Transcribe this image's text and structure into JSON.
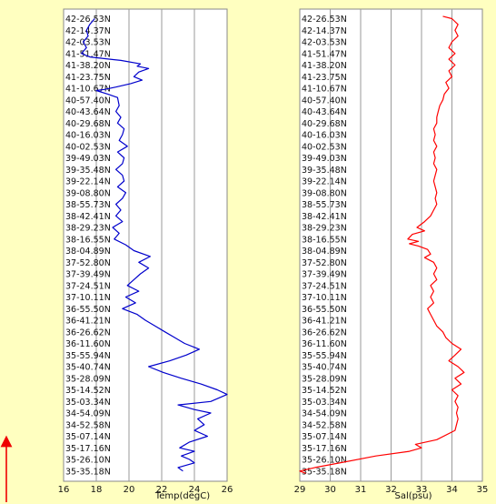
{
  "chart_data": [
    {
      "type": "line",
      "xlabel": "Temp(degC)",
      "xlim": [
        16,
        26
      ],
      "xticks": [
        "16",
        "18",
        "20",
        "22",
        "24",
        "26"
      ],
      "y_categories": [
        "42-26.53N",
        "42-14.37N",
        "42-03.53N",
        "41-51.47N",
        "41-38.20N",
        "41-23.75N",
        "41-10.67N",
        "40-57.40N",
        "40-43.64N",
        "40-29.68N",
        "40-16.03N",
        "40-02.53N",
        "39-49.03N",
        "39-35.48N",
        "39-22.14N",
        "39-08.80N",
        "38-55.73N",
        "38-42.41N",
        "38-29.23N",
        "38-16.55N",
        "38-04.89N",
        "37-52.80N",
        "37-39.49N",
        "37-24.51N",
        "37-10.11N",
        "36-55.50N",
        "36-41.21N",
        "36-26.62N",
        "36-11.60N",
        "35-55.94N",
        "35-40.74N",
        "35-28.09N",
        "35-14.52N",
        "35-03.34N",
        "34-54.09N",
        "34-52.58N",
        "35-07.14N",
        "35-17.16N",
        "35-26.10N",
        "35-35.18N"
      ],
      "series": [
        {
          "color": "#0000cc",
          "points": [
            [
              17.9,
              0
            ],
            [
              17.6,
              0.5
            ],
            [
              17.4,
              1
            ],
            [
              17.5,
              1.5
            ],
            [
              17.2,
              2
            ],
            [
              17.4,
              2.5
            ],
            [
              17.1,
              3
            ],
            [
              17.6,
              3.3
            ],
            [
              19.5,
              3.6
            ],
            [
              20.7,
              3.9
            ],
            [
              20.5,
              4.1
            ],
            [
              21.2,
              4.3
            ],
            [
              20.6,
              4.6
            ],
            [
              20.3,
              5
            ],
            [
              20.8,
              5.3
            ],
            [
              20.1,
              5.6
            ],
            [
              19.2,
              5.9
            ],
            [
              18.5,
              6.1
            ],
            [
              18.0,
              6.2
            ],
            [
              18.7,
              6.5
            ],
            [
              19.3,
              6.8
            ],
            [
              19.4,
              7.5
            ],
            [
              19.2,
              8
            ],
            [
              19.5,
              8.5
            ],
            [
              19.3,
              9
            ],
            [
              19.7,
              9.5
            ],
            [
              19.6,
              10
            ],
            [
              19.4,
              10.5
            ],
            [
              19.9,
              11
            ],
            [
              19.3,
              11.5
            ],
            [
              19.7,
              12
            ],
            [
              19.6,
              12.5
            ],
            [
              19.2,
              13
            ],
            [
              19.6,
              13.5
            ],
            [
              19.7,
              14
            ],
            [
              19.3,
              14.5
            ],
            [
              19.8,
              15
            ],
            [
              19.6,
              15.5
            ],
            [
              19.2,
              16
            ],
            [
              19.5,
              16.5
            ],
            [
              19.2,
              17
            ],
            [
              19.6,
              17.5
            ],
            [
              19.0,
              18
            ],
            [
              19.4,
              18.5
            ],
            [
              19.1,
              19
            ],
            [
              19.8,
              19.5
            ],
            [
              20.3,
              20
            ],
            [
              21.3,
              20.5
            ],
            [
              20.6,
              21
            ],
            [
              21.2,
              21.5
            ],
            [
              20.7,
              22
            ],
            [
              20.3,
              22.5
            ],
            [
              19.9,
              23
            ],
            [
              20.6,
              23.5
            ],
            [
              19.8,
              24
            ],
            [
              20.4,
              24.5
            ],
            [
              19.6,
              25
            ],
            [
              20.5,
              25.5
            ],
            [
              21.0,
              26
            ],
            [
              21.6,
              26.5
            ],
            [
              22.2,
              27
            ],
            [
              22.8,
              27.5
            ],
            [
              23.4,
              28
            ],
            [
              24.3,
              28.5
            ],
            [
              23.5,
              29
            ],
            [
              22.5,
              29.5
            ],
            [
              21.2,
              30
            ],
            [
              22.1,
              30.5
            ],
            [
              23.2,
              31
            ],
            [
              24.4,
              31.5
            ],
            [
              25.4,
              32
            ],
            [
              26.0,
              32.4
            ],
            [
              25.0,
              33
            ],
            [
              23.0,
              33.3
            ],
            [
              24.0,
              33.7
            ],
            [
              25.0,
              34
            ],
            [
              24.2,
              34.5
            ],
            [
              24.6,
              35
            ],
            [
              24.0,
              35.5
            ],
            [
              24.8,
              36
            ],
            [
              23.7,
              36.5
            ],
            [
              23.1,
              37
            ],
            [
              24.0,
              37.3
            ],
            [
              23.2,
              37.7
            ],
            [
              23.7,
              38
            ],
            [
              24.0,
              38.3
            ],
            [
              23.0,
              38.7
            ],
            [
              23.3,
              39
            ]
          ]
        }
      ]
    },
    {
      "type": "line",
      "xlabel": "Sal(psu)",
      "xlim": [
        29,
        35
      ],
      "xticks": [
        "29",
        "30",
        "31",
        "32",
        "33",
        "34",
        "35"
      ],
      "y_categories": [
        "42-26.53N",
        "42-14.37N",
        "42-03.53N",
        "41-51.47N",
        "41-38.20N",
        "41-23.75N",
        "41-10.67N",
        "40-57.40N",
        "40-43.64N",
        "40-29.68N",
        "40-16.03N",
        "40-02.53N",
        "39-49.03N",
        "39-35.48N",
        "39-22.14N",
        "39-08.80N",
        "38-55.73N",
        "38-42.41N",
        "38-29.23N",
        "38-16.55N",
        "38-04.89N",
        "37-52.80N",
        "37-39.49N",
        "37-24.51N",
        "37-10.11N",
        "36-55.50N",
        "36-41.21N",
        "36-26.62N",
        "36-11.60N",
        "35-55.94N",
        "35-40.74N",
        "35-28.09N",
        "35-14.52N",
        "35-03.34N",
        "34-54.09N",
        "34-52.58N",
        "35-07.14N",
        "35-17.16N",
        "35-26.10N",
        "35-35.18N"
      ],
      "series": [
        {
          "color": "#ff0000",
          "points": [
            [
              33.7,
              -0.2
            ],
            [
              34.0,
              0
            ],
            [
              34.2,
              0.5
            ],
            [
              34.1,
              1
            ],
            [
              34.2,
              1.5
            ],
            [
              34.0,
              2
            ],
            [
              33.9,
              2.5
            ],
            [
              34.1,
              3
            ],
            [
              33.9,
              3.5
            ],
            [
              34.1,
              4
            ],
            [
              33.9,
              4.5
            ],
            [
              34.0,
              5
            ],
            [
              33.8,
              5.5
            ],
            [
              33.9,
              6
            ],
            [
              33.75,
              6.5
            ],
            [
              33.7,
              7
            ],
            [
              33.6,
              7.5
            ],
            [
              33.55,
              8
            ],
            [
              33.5,
              8.5
            ],
            [
              33.5,
              9
            ],
            [
              33.4,
              9.5
            ],
            [
              33.45,
              10
            ],
            [
              33.4,
              10.5
            ],
            [
              33.5,
              11
            ],
            [
              33.4,
              11.5
            ],
            [
              33.45,
              12
            ],
            [
              33.4,
              12.5
            ],
            [
              33.5,
              13
            ],
            [
              33.45,
              13.5
            ],
            [
              33.4,
              14
            ],
            [
              33.45,
              14.5
            ],
            [
              33.5,
              15
            ],
            [
              33.45,
              15.5
            ],
            [
              33.5,
              16
            ],
            [
              33.4,
              16.5
            ],
            [
              33.3,
              17
            ],
            [
              33.1,
              17.5
            ],
            [
              32.85,
              18
            ],
            [
              33.1,
              18.3
            ],
            [
              32.7,
              18.6
            ],
            [
              32.55,
              19
            ],
            [
              32.9,
              19.2
            ],
            [
              32.6,
              19.4
            ],
            [
              32.9,
              19.6
            ],
            [
              33.2,
              19.9
            ],
            [
              33.3,
              20.3
            ],
            [
              33.1,
              20.6
            ],
            [
              33.4,
              21
            ],
            [
              33.5,
              21.5
            ],
            [
              33.4,
              22
            ],
            [
              33.5,
              22.5
            ],
            [
              33.3,
              23
            ],
            [
              33.4,
              23.5
            ],
            [
              33.3,
              24
            ],
            [
              33.4,
              24.5
            ],
            [
              33.2,
              25
            ],
            [
              33.3,
              25.5
            ],
            [
              33.4,
              26
            ],
            [
              33.5,
              26.5
            ],
            [
              33.7,
              27
            ],
            [
              33.8,
              27.5
            ],
            [
              34.0,
              28
            ],
            [
              34.3,
              28.5
            ],
            [
              34.1,
              29
            ],
            [
              33.9,
              29.5
            ],
            [
              34.2,
              30
            ],
            [
              34.4,
              30.5
            ],
            [
              34.1,
              31
            ],
            [
              34.3,
              31.5
            ],
            [
              34.0,
              32
            ],
            [
              34.2,
              32.5
            ],
            [
              34.1,
              33
            ],
            [
              34.2,
              33.5
            ],
            [
              34.15,
              34
            ],
            [
              34.2,
              34.5
            ],
            [
              34.15,
              35
            ],
            [
              34.1,
              35.5
            ],
            [
              33.5,
              36.3
            ],
            [
              32.8,
              36.7
            ],
            [
              33.0,
              37
            ],
            [
              32.6,
              37.3
            ],
            [
              31.5,
              37.7
            ],
            [
              30.5,
              38.2
            ],
            [
              29.5,
              38.7
            ],
            [
              29.0,
              39
            ],
            [
              29.2,
              39.2
            ]
          ]
        }
      ]
    }
  ]
}
